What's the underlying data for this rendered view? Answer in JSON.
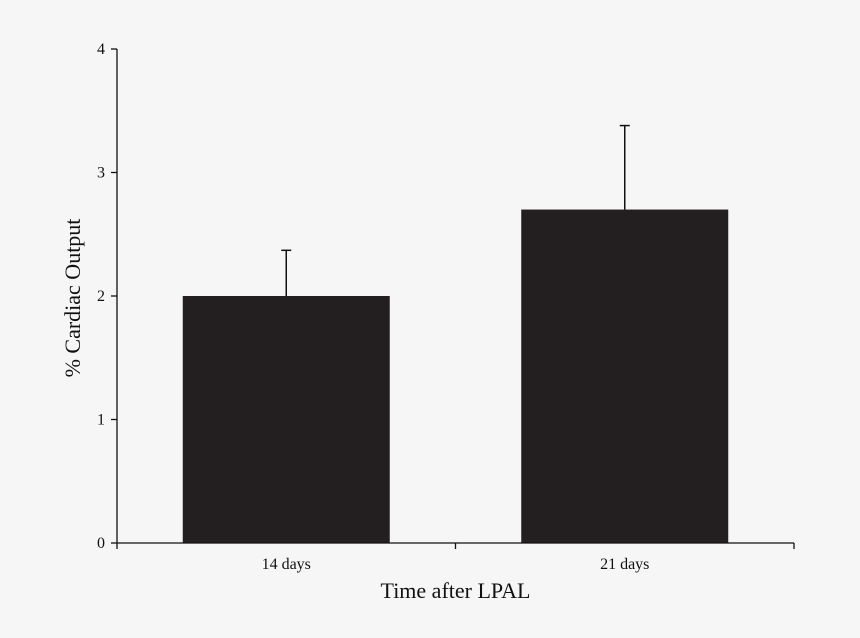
{
  "chart_data": {
    "type": "bar",
    "title": "",
    "xlabel": "Time after LPAL",
    "ylabel": "% Cardiac Output",
    "categories": [
      "14 days",
      "21 days"
    ],
    "values": [
      2.0,
      2.7
    ],
    "error_upper": [
      0.37,
      0.68
    ],
    "ylim": [
      0,
      4
    ],
    "yticks": [
      0,
      1,
      2,
      3,
      4
    ],
    "grid": false,
    "bar_color": "#231f20",
    "background": "#f6f6f6"
  }
}
